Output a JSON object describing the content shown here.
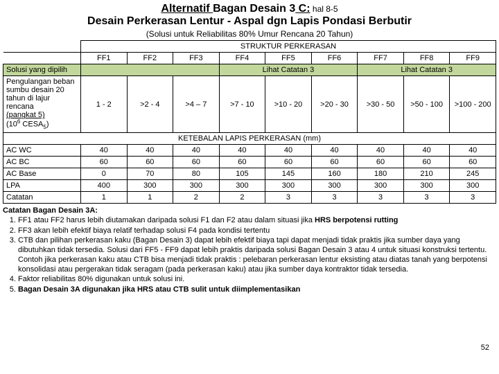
{
  "title": {
    "prefix": "Alternatif ",
    "mid": "Bagan Desain 3",
    "suffix": " C:",
    "tail": " hal 8-5",
    "line2": "Desain Perkerasan Lentur - Aspal dgn Lapis Pondasi Berbutir",
    "subtitle": "(Solusi untuk Reliabilitas 80% Umur Rencana 20 Tahun)"
  },
  "headers": {
    "struktur": "STRUKTUR PERKERASAN",
    "cols": [
      "FF1",
      "FF2",
      "FF3",
      "FF4",
      "FF5",
      "FF6",
      "FF7",
      "FF8",
      "FF9"
    ],
    "ketebalan": "KETEBALAN LAPIS PERKERASAN (mm)"
  },
  "solusi": {
    "label": "Solusi yang dipilih",
    "note1": "Lihat Catatan 3",
    "note2": "Lihat Catatan 3"
  },
  "beban": {
    "l1": "Pengulangan beban",
    "l2": "sumbu desain 20",
    "l3": "tahun di lajur rencana",
    "l4": "(pangkat 5)",
    "l5a": "(10",
    "l5sup": "6",
    "l5b": " CESA",
    "l5sub": "5",
    "l5c": ")",
    "vals": [
      "1 - 2",
      ">2 - 4",
      ">4 – 7",
      ">7 - 10",
      ">10 - 20",
      ">20 - 30",
      ">30 - 50",
      ">50 - 100",
      ">100 - 200"
    ]
  },
  "rows": [
    {
      "label": "AC WC",
      "vals": [
        "40",
        "40",
        "40",
        "40",
        "40",
        "40",
        "40",
        "40",
        "40"
      ]
    },
    {
      "label": "AC BC",
      "vals": [
        "60",
        "60",
        "60",
        "60",
        "60",
        "60",
        "60",
        "60",
        "60"
      ]
    },
    {
      "label": "AC Base",
      "vals": [
        "0",
        "70",
        "80",
        "105",
        "145",
        "160",
        "180",
        "210",
        "245"
      ]
    },
    {
      "label": "LPA",
      "vals": [
        "400",
        "300",
        "300",
        "300",
        "300",
        "300",
        "300",
        "300",
        "300"
      ]
    },
    {
      "label": "Catatan",
      "vals": [
        "1",
        "1",
        "2",
        "2",
        "3",
        "3",
        "3",
        "3",
        "3"
      ]
    }
  ],
  "notes": {
    "title": "Catatan Bagan Desain 3A:",
    "items": [
      "FF1 atau FF2 harus lebih diutamakan daripada solusi F1 dan F2 atau dalam situasi jika <b>HRS berpotensi rutting</b>",
      "FF3 akan lebih efektif biaya relatif terhadap solusi F4 pada kondisi tertentu",
      "CTB dan pilihan perkerasan kaku (Bagan Desain 3) dapat lebih efektif biaya tapi dapat menjadi tidak praktis jika sumber daya yang dibutuhkan tidak tersedia. Solusi dari FF5 - FF9 dapat lebih praktis daripada solusi Bagan Desain 3 atau 4 untuk situasi konstruksi tertentu. Contoh jika perkerasan kaku atau CTB bisa menjadi tidak praktis : pelebaran perkerasan lentur eksisting atau diatas tanah yang berpotensi konsolidasi atau pergerakan tidak seragam (pada perkerasan kaku) atau jika sumber daya kontraktor tidak tersedia.",
      "Faktor reliabilitas 80% digunakan untuk solusi ini.",
      "<b>Bagan Desain 3A digunakan jika HRS atau CTB sulit untuk diimplementasikan</b>"
    ]
  },
  "page": "52"
}
